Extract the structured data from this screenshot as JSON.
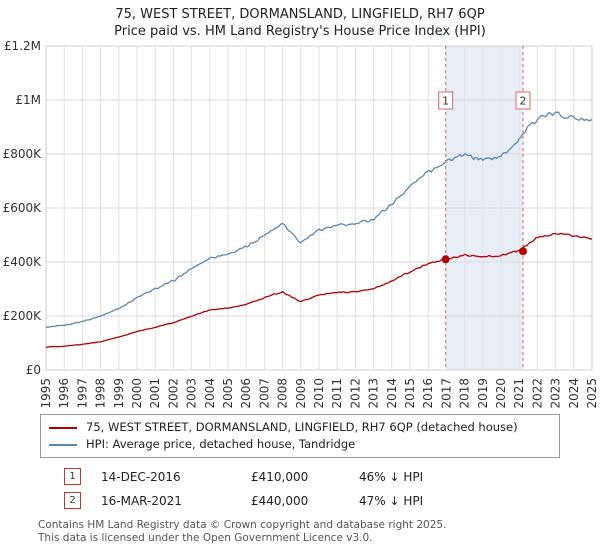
{
  "title": "75, WEST STREET, DORMANSLAND, LINGFIELD, RH7 6QP",
  "subtitle": "Price paid vs. HM Land Registry's House Price Index (HPI)",
  "chart_data": {
    "type": "line",
    "x_range": [
      1995,
      2025
    ],
    "ylim": [
      0,
      1200000
    ],
    "grid": true,
    "legend_position": "bottom",
    "y_tick_values": [
      0,
      200000,
      400000,
      600000,
      800000,
      1000000,
      1200000
    ],
    "y_ticks": [
      "£0",
      "£200K",
      "£400K",
      "£600K",
      "£800K",
      "£1M",
      "£1.2M"
    ],
    "x_ticks": [
      1995,
      1996,
      1997,
      1998,
      1999,
      2000,
      2001,
      2002,
      2003,
      2004,
      2005,
      2006,
      2007,
      2008,
      2009,
      2010,
      2011,
      2012,
      2013,
      2014,
      2015,
      2016,
      2017,
      2018,
      2019,
      2020,
      2021,
      2022,
      2023,
      2024,
      2025
    ],
    "years": [
      1995,
      1996,
      1997,
      1998,
      1999,
      2000,
      2001,
      2002,
      2003,
      2004,
      2005,
      2006,
      2007,
      2008,
      2009,
      2010,
      2011,
      2012,
      2013,
      2014,
      2015,
      2016,
      2017,
      2018,
      2019,
      2020,
      2021,
      2022,
      2023,
      2024,
      2025
    ],
    "series": [
      {
        "name": "75, WEST STREET, DORMANSLAND, LINGFIELD, RH7 6QP (detached house)",
        "color": "#b40000",
        "noise": 0.02,
        "values": [
          85000,
          88000,
          95000,
          105000,
          122000,
          142000,
          158000,
          175000,
          200000,
          222000,
          230000,
          243000,
          268000,
          290000,
          252000,
          278000,
          287000,
          290000,
          300000,
          330000,
          365000,
          393000,
          412000,
          425000,
          418000,
          424000,
          443000,
          490000,
          505000,
          498000,
          487000
        ]
      },
      {
        "name": "HPI: Average price, detached house, Tandridge",
        "color": "#5b87b5",
        "noise": 0.025,
        "values": [
          158000,
          165000,
          180000,
          200000,
          228000,
          268000,
          300000,
          330000,
          375000,
          415000,
          430000,
          455000,
          500000,
          545000,
          472000,
          520000,
          535000,
          540000,
          560000,
          615000,
          680000,
          735000,
          775000,
          795000,
          780000,
          790000,
          855000,
          935000,
          950000,
          935000,
          920000
        ]
      }
    ],
    "sales": [
      {
        "label": "1",
        "date": "14-DEC-2016",
        "x": 2016.96,
        "price": 410000,
        "price_label": "£410,000",
        "hpi_label": "46% ↓ HPI"
      },
      {
        "label": "2",
        "date": "16-MAR-2021",
        "x": 2021.21,
        "price": 440000,
        "price_label": "£440,000",
        "hpi_label": "47% ↓ HPI"
      }
    ],
    "shaded_region": [
      2016.96,
      2021.21
    ],
    "colors": {
      "band": "#e8eef8",
      "sale_line": "#e06666",
      "grid_h": "#d9d9d9",
      "grid_v": "#e2e2e2",
      "plot_border": "#cccccc"
    }
  },
  "footer": {
    "line1": "Contains HM Land Registry data © Crown copyright and database right 2025.",
    "line2": "This data is licensed under the Open Government Licence v3.0."
  }
}
